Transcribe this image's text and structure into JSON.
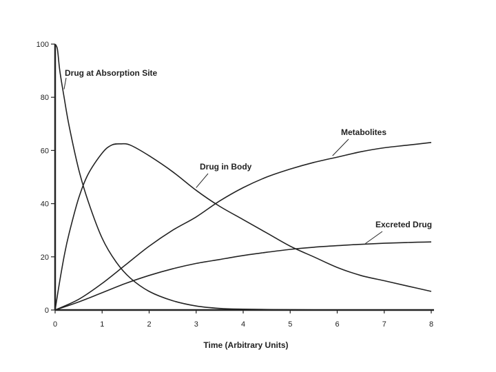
{
  "chart_data": {
    "type": "line",
    "title": "",
    "xlabel": "Time (Arbitrary Units)",
    "ylabel": "",
    "xlim": [
      0,
      8
    ],
    "ylim": [
      0,
      100
    ],
    "x_ticks": [
      "0",
      "1",
      "2",
      "3",
      "4",
      "5",
      "6",
      "7",
      "8"
    ],
    "y_ticks": [
      "0",
      "20",
      "40",
      "60",
      "80",
      "100"
    ],
    "grid": false,
    "legend": "none",
    "line_color": "#222222",
    "series": [
      {
        "name": "Drug at Absorption Site",
        "x": [
          0,
          0.05,
          0.1,
          0.2,
          0.3,
          0.5,
          0.7,
          1.0,
          1.3,
          1.6,
          2.0,
          2.5,
          3.0,
          3.5,
          4.0,
          5.0,
          6.0,
          7.0,
          8.0
        ],
        "y": [
          100,
          98,
          90,
          79,
          69,
          53,
          41,
          27,
          18,
          12,
          7,
          3.5,
          1.5,
          0.6,
          0.3,
          0.1,
          0,
          0,
          0
        ]
      },
      {
        "name": "Drug in Body",
        "x": [
          0,
          0.1,
          0.2,
          0.3,
          0.5,
          0.7,
          1.0,
          1.2,
          1.4,
          1.6,
          2.0,
          2.5,
          3.0,
          3.5,
          4.0,
          4.5,
          5.0,
          5.5,
          6.0,
          6.5,
          7.0,
          7.5,
          8.0
        ],
        "y": [
          0,
          11,
          21,
          29,
          42,
          51,
          59,
          62,
          62.5,
          62,
          58,
          52,
          45,
          39,
          34,
          29,
          24,
          20,
          16,
          13,
          11,
          9,
          7
        ]
      },
      {
        "name": "Metabolites",
        "x": [
          0,
          0.5,
          1.0,
          1.5,
          2.0,
          2.5,
          3.0,
          3.5,
          4.0,
          4.5,
          5.0,
          5.5,
          6.0,
          6.5,
          7.0,
          7.5,
          8.0
        ],
        "y": [
          0,
          4,
          10,
          17,
          24,
          30,
          35,
          41,
          46,
          50,
          53,
          55.5,
          57.5,
          59.5,
          61,
          62,
          63
        ]
      },
      {
        "name": "Excreted Drug",
        "x": [
          0,
          0.5,
          1.0,
          1.5,
          2.0,
          2.5,
          3.0,
          3.5,
          4.0,
          4.5,
          5.0,
          5.5,
          6.0,
          6.5,
          7.0,
          7.5,
          8.0
        ],
        "y": [
          0,
          3,
          6.5,
          10,
          13,
          15.5,
          17.5,
          19,
          20.5,
          21.7,
          22.8,
          23.6,
          24.2,
          24.7,
          25.1,
          25.4,
          25.6
        ]
      }
    ]
  }
}
